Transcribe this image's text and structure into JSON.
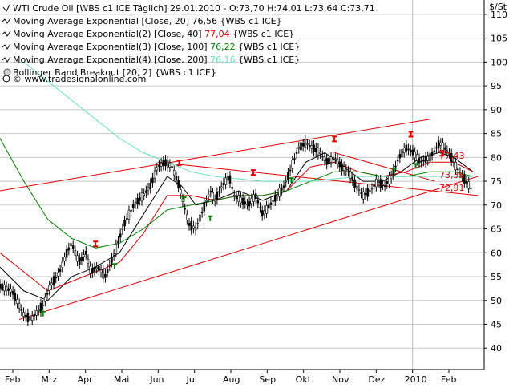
{
  "header": {
    "instrument": "WTI Crude Oil [WBS c1 ICE  Täglich] 29.01.2010 - O:73,70 H:74,01 L:73,64 C:73,71",
    "currency": "$/St"
  },
  "legend": [
    {
      "label": "Moving Average Exponential [Close, 20]",
      "value": "76,56",
      "source": "{WBS c1 ICE}",
      "color": "#000000"
    },
    {
      "label": "Moving Average Exponential(2) [Close, 40]",
      "value": "77,04",
      "source": "{WBS c1 ICE}",
      "color": "#d40000"
    },
    {
      "label": "Moving Average Exponential(3) [Close, 100]",
      "value": "76,22",
      "source": "{WBS c1 ICE}",
      "color": "#008000"
    },
    {
      "label": "Moving Average Exponential(4) [Close, 200]",
      "value": "76,16",
      "source": "{WBS c1 ICE}",
      "color": "#66e0c0"
    },
    {
      "label": "Bollinger Band Breakout [20, 2]",
      "value": "",
      "source": "{WBS c1 ICE}",
      "color": "#000000"
    }
  ],
  "watermark": "© www.tradesignalonline.com",
  "price_labels": [
    {
      "text": "77,43",
      "color": "#d40000"
    },
    {
      "text": "73,36",
      "color": "#d40000"
    },
    {
      "text": "72,91",
      "color": "#d40000"
    }
  ],
  "chart_data": {
    "type": "line",
    "y_ticks": [
      40,
      45,
      50,
      55,
      60,
      65,
      70,
      75,
      80,
      85,
      90,
      95,
      100,
      105,
      110
    ],
    "ylim": [
      35.5,
      112
    ],
    "x_tick_labels": [
      "Feb",
      "Mrz",
      "Apr",
      "Mai",
      "Jun",
      "Jul",
      "Aug",
      "Sep",
      "Okt",
      "Nov",
      "Dez",
      "2010",
      "Feb"
    ],
    "grid": true,
    "axis_position": "right",
    "price_series": {
      "name": "WTI Crude Oil",
      "points": [
        [
          0,
          53
        ],
        [
          5,
          52
        ],
        [
          10,
          47
        ],
        [
          13,
          46
        ],
        [
          18,
          49
        ],
        [
          21,
          53
        ],
        [
          25,
          56
        ],
        [
          28,
          60
        ],
        [
          30,
          62
        ],
        [
          33,
          58
        ],
        [
          36,
          60
        ],
        [
          38,
          56
        ],
        [
          41,
          57
        ],
        [
          44,
          55
        ],
        [
          48,
          60
        ],
        [
          52,
          66
        ],
        [
          56,
          70
        ],
        [
          60,
          72
        ],
        [
          63,
          74
        ],
        [
          66,
          78
        ],
        [
          69,
          79
        ],
        [
          72,
          78
        ],
        [
          75,
          74
        ],
        [
          77,
          70
        ],
        [
          79,
          66
        ],
        [
          82,
          65
        ],
        [
          85,
          69
        ],
        [
          88,
          73
        ],
        [
          90,
          71
        ],
        [
          93,
          74
        ],
        [
          96,
          76
        ],
        [
          98,
          72
        ],
        [
          101,
          71
        ],
        [
          104,
          70
        ],
        [
          107,
          72
        ],
        [
          110,
          68
        ],
        [
          113,
          70
        ],
        [
          116,
          72
        ],
        [
          119,
          74
        ],
        [
          122,
          78
        ],
        [
          125,
          82
        ],
        [
          128,
          83
        ],
        [
          131,
          82
        ],
        [
          134,
          81
        ],
        [
          137,
          79
        ],
        [
          140,
          80
        ],
        [
          143,
          78
        ],
        [
          146,
          77
        ],
        [
          149,
          74
        ],
        [
          152,
          72
        ],
        [
          155,
          73
        ],
        [
          158,
          75
        ],
        [
          161,
          74
        ],
        [
          164,
          76
        ],
        [
          167,
          80
        ],
        [
          170,
          82
        ],
        [
          173,
          81
        ],
        [
          176,
          79
        ],
        [
          180,
          80
        ],
        [
          184,
          83
        ],
        [
          188,
          81
        ],
        [
          191,
          78
        ],
        [
          195,
          75
        ],
        [
          198,
          73
        ]
      ],
      "color": "#000000"
    },
    "series": [
      {
        "name": "Moving Average Exponential [Close, 20]",
        "color": "#000000",
        "points": [
          [
            0,
            57
          ],
          [
            10,
            52
          ],
          [
            20,
            50
          ],
          [
            30,
            55
          ],
          [
            40,
            57
          ],
          [
            50,
            60
          ],
          [
            60,
            68
          ],
          [
            70,
            76
          ],
          [
            76,
            74
          ],
          [
            82,
            70
          ],
          [
            90,
            71
          ],
          [
            100,
            73
          ],
          [
            110,
            71
          ],
          [
            120,
            73
          ],
          [
            128,
            79
          ],
          [
            136,
            81
          ],
          [
            144,
            78
          ],
          [
            152,
            75
          ],
          [
            160,
            75
          ],
          [
            168,
            77
          ],
          [
            176,
            80
          ],
          [
            184,
            81
          ],
          [
            190,
            80
          ],
          [
            198,
            77
          ]
        ]
      },
      {
        "name": "Moving Average Exponential(2) [Close, 40]",
        "color": "#d40000",
        "points": [
          [
            0,
            60
          ],
          [
            10,
            56
          ],
          [
            20,
            52
          ],
          [
            30,
            54
          ],
          [
            40,
            56
          ],
          [
            50,
            58
          ],
          [
            60,
            64
          ],
          [
            70,
            72
          ],
          [
            80,
            72
          ],
          [
            90,
            71
          ],
          [
            100,
            72
          ],
          [
            110,
            72
          ],
          [
            120,
            73
          ],
          [
            130,
            78
          ],
          [
            140,
            79
          ],
          [
            150,
            77
          ],
          [
            160,
            76
          ],
          [
            170,
            77
          ],
          [
            180,
            79
          ],
          [
            190,
            79
          ],
          [
            198,
            77
          ]
        ]
      },
      {
        "name": "Moving Average Exponential(3) [Close, 100]",
        "color": "#008000",
        "points": [
          [
            0,
            84
          ],
          [
            10,
            75
          ],
          [
            20,
            67
          ],
          [
            30,
            63
          ],
          [
            40,
            61
          ],
          [
            50,
            62
          ],
          [
            60,
            65
          ],
          [
            70,
            69
          ],
          [
            80,
            70
          ],
          [
            90,
            71
          ],
          [
            100,
            72
          ],
          [
            110,
            72
          ],
          [
            120,
            73
          ],
          [
            130,
            75
          ],
          [
            140,
            77
          ],
          [
            150,
            77
          ],
          [
            160,
            76
          ],
          [
            170,
            76
          ],
          [
            180,
            77
          ],
          [
            190,
            77
          ],
          [
            198,
            76
          ]
        ]
      },
      {
        "name": "Moving Average Exponential(4) [Close, 200]",
        "color": "#66e0c0",
        "points": [
          [
            10,
            100
          ],
          [
            20,
            96
          ],
          [
            30,
            92
          ],
          [
            40,
            88
          ],
          [
            50,
            84
          ],
          [
            60,
            81
          ],
          [
            70,
            79
          ],
          [
            80,
            77
          ],
          [
            90,
            76
          ],
          [
            100,
            75.5
          ],
          [
            110,
            75
          ],
          [
            120,
            75
          ],
          [
            130,
            75
          ],
          [
            140,
            75.5
          ],
          [
            150,
            76
          ],
          [
            160,
            76
          ],
          [
            170,
            76
          ],
          [
            180,
            76
          ],
          [
            190,
            76
          ],
          [
            198,
            76
          ]
        ]
      }
    ],
    "trend_lines": [
      {
        "from": [
          0,
          73
        ],
        "to": [
          180,
          88
        ],
        "color": "#e00000"
      },
      {
        "from": [
          8,
          46
        ],
        "to": [
          200,
          76
        ],
        "color": "#e00000"
      },
      {
        "from": [
          66,
          79
        ],
        "to": [
          200,
          72
        ],
        "color": "#e00000"
      },
      {
        "from": [
          140,
          81
        ],
        "to": [
          182,
          75
        ],
        "color": "#e00000"
      }
    ],
    "buy_markers": [
      [
        18,
        49
      ],
      [
        48,
        59
      ],
      [
        77,
        73
      ],
      [
        88,
        69
      ],
      [
        122,
        77
      ],
      [
        165,
        79
      ],
      [
        174,
        80
      ]
    ],
    "sell_markers": [
      [
        40,
        60
      ],
      [
        75,
        77
      ],
      [
        106,
        75
      ],
      [
        140,
        82
      ],
      [
        172,
        83
      ],
      [
        185,
        79
      ]
    ],
    "marker_colors": {
      "buy": "#008000",
      "sell": "#e00000"
    }
  }
}
